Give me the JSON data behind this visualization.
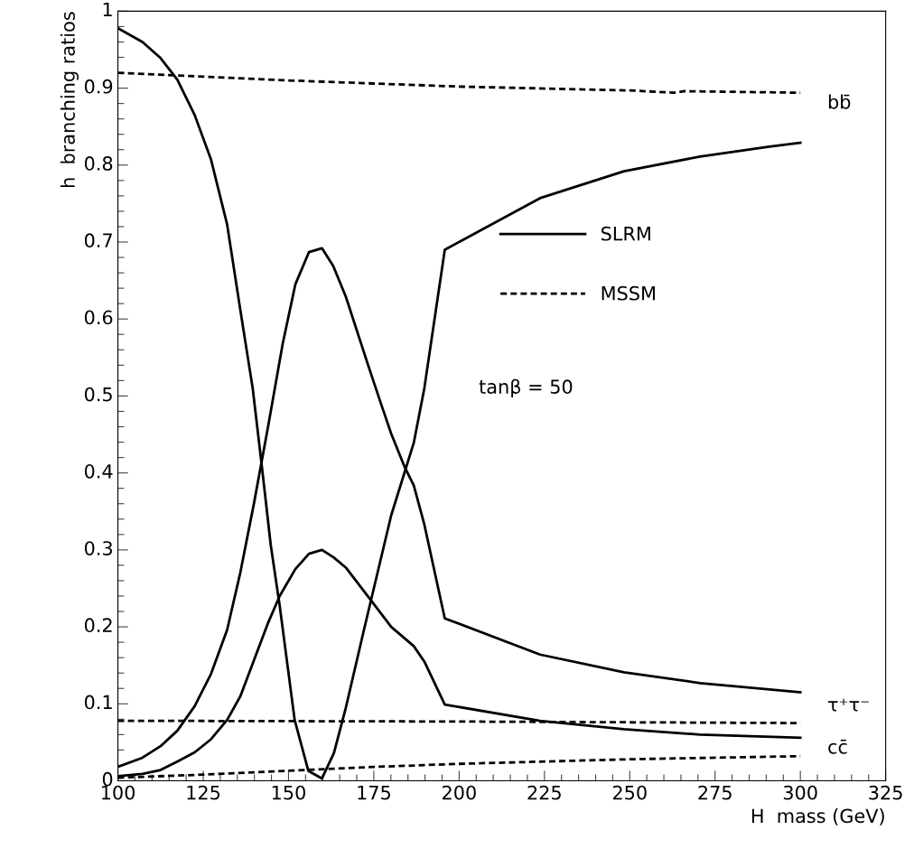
{
  "chart_data": {
    "type": "line",
    "xlabel": "H  mass (GeV)",
    "ylabel": "h  branching ratios",
    "xlim": [
      100,
      325
    ],
    "xticks": [
      100,
      125,
      150,
      175,
      200,
      225,
      250,
      275,
      300,
      325
    ],
    "ylim": [
      0,
      1
    ],
    "yticks": [
      0,
      0.1,
      0.2,
      0.3,
      0.4,
      0.5,
      0.6,
      0.7,
      0.8,
      0.9,
      1
    ],
    "grid": false,
    "legend": "center",
    "marker": "none",
    "series": [
      {
        "name": "SLRM",
        "color": "#000000",
        "line_style": "solid",
        "x": [
          100,
          107.2,
          112.5,
          117.4,
          122.5,
          127.3,
          132,
          135.9,
          139.5,
          142.1,
          144.8,
          147.4,
          151.8,
          155.8,
          159.8,
          163.3,
          166.8,
          172.1,
          180.1,
          186.7,
          189.8,
          195.8,
          223.7,
          248.3,
          270.6,
          290.9,
          300
        ],
        "values": [
          0.978,
          0.96,
          0.939,
          0.911,
          0.865,
          0.807,
          0.723,
          0.611,
          0.51,
          0.412,
          0.306,
          0.228,
          0.079,
          0.013,
          0.003,
          0.036,
          0.095,
          0.196,
          0.345,
          0.439,
          0.51,
          0.69,
          0.757,
          0.792,
          0.811,
          0.824,
          0.829
        ]
      },
      {
        "color": "#000000",
        "line_style": "solid",
        "x": [
          100,
          107.2,
          112.5,
          117.4,
          122.5,
          127.3,
          132,
          135.9,
          139.9,
          144,
          148.3,
          152,
          156,
          159.8,
          163.1,
          166.8,
          173.4,
          177.4,
          180.1,
          184,
          186.7,
          189.8,
          195.8,
          223.7,
          248.3,
          270.6,
          300
        ],
        "values": [
          0.018,
          0.03,
          0.045,
          0.065,
          0.097,
          0.139,
          0.196,
          0.271,
          0.361,
          0.46,
          0.568,
          0.645,
          0.687,
          0.692,
          0.669,
          0.629,
          0.539,
          0.486,
          0.451,
          0.408,
          0.384,
          0.333,
          0.211,
          0.164,
          0.141,
          0.127,
          0.115
        ]
      },
      {
        "color": "#000000",
        "line_style": "solid",
        "x": [
          100,
          107.2,
          112.5,
          117.4,
          122.5,
          127.3,
          132,
          135.9,
          139.9,
          143.9,
          147.4,
          152,
          156,
          159.8,
          163.3,
          166.8,
          173.9,
          180.1,
          186.7,
          189.8,
          195.8,
          223.7,
          248.3,
          270.6,
          300
        ],
        "values": [
          0.006,
          0.009,
          0.014,
          0.025,
          0.037,
          0.054,
          0.079,
          0.11,
          0.157,
          0.204,
          0.24,
          0.275,
          0.295,
          0.3,
          0.29,
          0.277,
          0.236,
          0.2,
          0.175,
          0.155,
          0.099,
          0.078,
          0.067,
          0.06,
          0.056
        ]
      },
      {
        "name": "MSSM",
        "color": "#000000",
        "line_style": "dashed",
        "x": [
          100,
          150,
          200,
          250,
          263,
          266,
          300
        ],
        "values": [
          0.92,
          0.91,
          0.902,
          0.897,
          0.894,
          0.896,
          0.894
        ]
      },
      {
        "color": "#000000",
        "line_style": "dashed",
        "x": [
          100,
          200,
          300
        ],
        "values": [
          0.078,
          0.077,
          0.075
        ]
      },
      {
        "color": "#000000",
        "line_style": "dashed",
        "x": [
          100,
          125,
          150,
          175,
          200,
          250,
          300
        ],
        "values": [
          0.004,
          0.008,
          0.013,
          0.018,
          0.022,
          0.028,
          0.032
        ]
      }
    ],
    "annotations": [
      "bb̄",
      "τ⁺τ⁻",
      "cc̄",
      "tanβ = 50"
    ]
  }
}
